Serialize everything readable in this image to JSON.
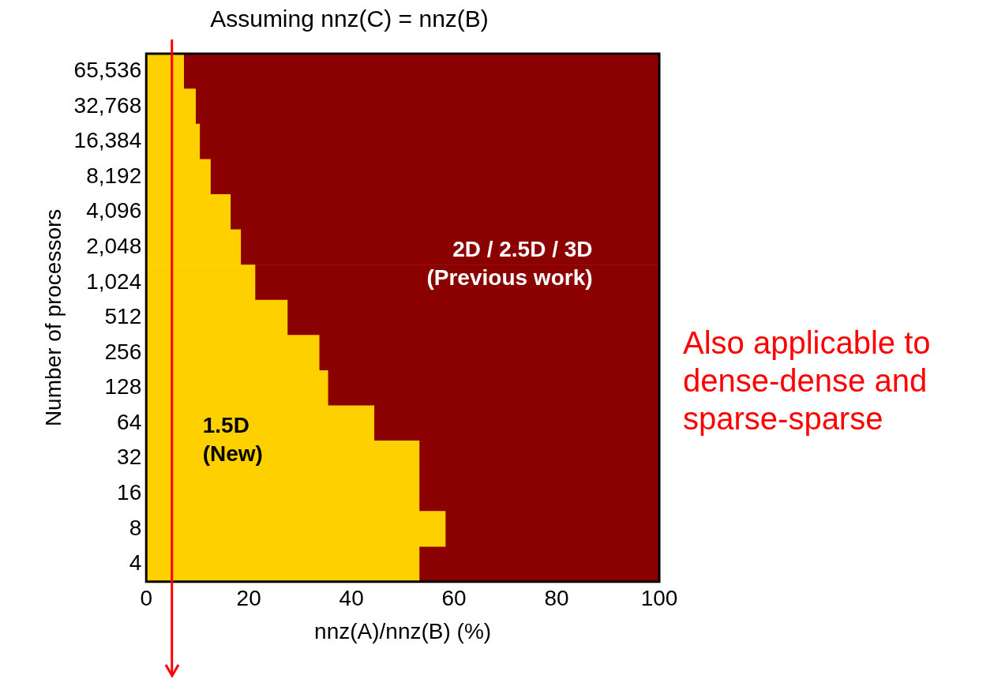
{
  "chart_data": {
    "type": "bar",
    "orientation": "horizontal",
    "stacked": true,
    "title": "Assuming nnz(C) = nnz(B)",
    "xlabel": "nnz(A)/nnz(B) (%)",
    "ylabel": "Number of processors",
    "categories": [
      "65,536",
      "32,768",
      "16,384",
      "8,192",
      "4,096",
      "2,048",
      "1,024",
      "512",
      "256",
      "128",
      "64",
      "32",
      "16",
      "8",
      "4"
    ],
    "series": [
      {
        "name": "1.5D (New)",
        "color": "#ffd000",
        "values": [
          7.3,
          9.6,
          10.4,
          12.5,
          16.4,
          18.4,
          21.2,
          27.5,
          33.7,
          35.4,
          44.4,
          53.2,
          53.2,
          58.3,
          53.2
        ]
      },
      {
        "name": "2D / 2.5D / 3D (Previous work)",
        "color": "#8b0000",
        "values": [
          92.7,
          90.4,
          89.6,
          87.5,
          83.6,
          81.6,
          78.8,
          72.5,
          66.3,
          64.6,
          55.6,
          46.8,
          46.8,
          41.7,
          46.8
        ]
      }
    ],
    "xlim": [
      0,
      100
    ],
    "xticks": [
      0,
      20,
      40,
      60,
      80,
      100
    ],
    "legend": false,
    "ref_lines": [
      {
        "axis": "x",
        "value": 5,
        "color": "#ff0000"
      }
    ],
    "annotations": [
      "Also applicable to dense-dense and sparse-sparse"
    ]
  }
}
